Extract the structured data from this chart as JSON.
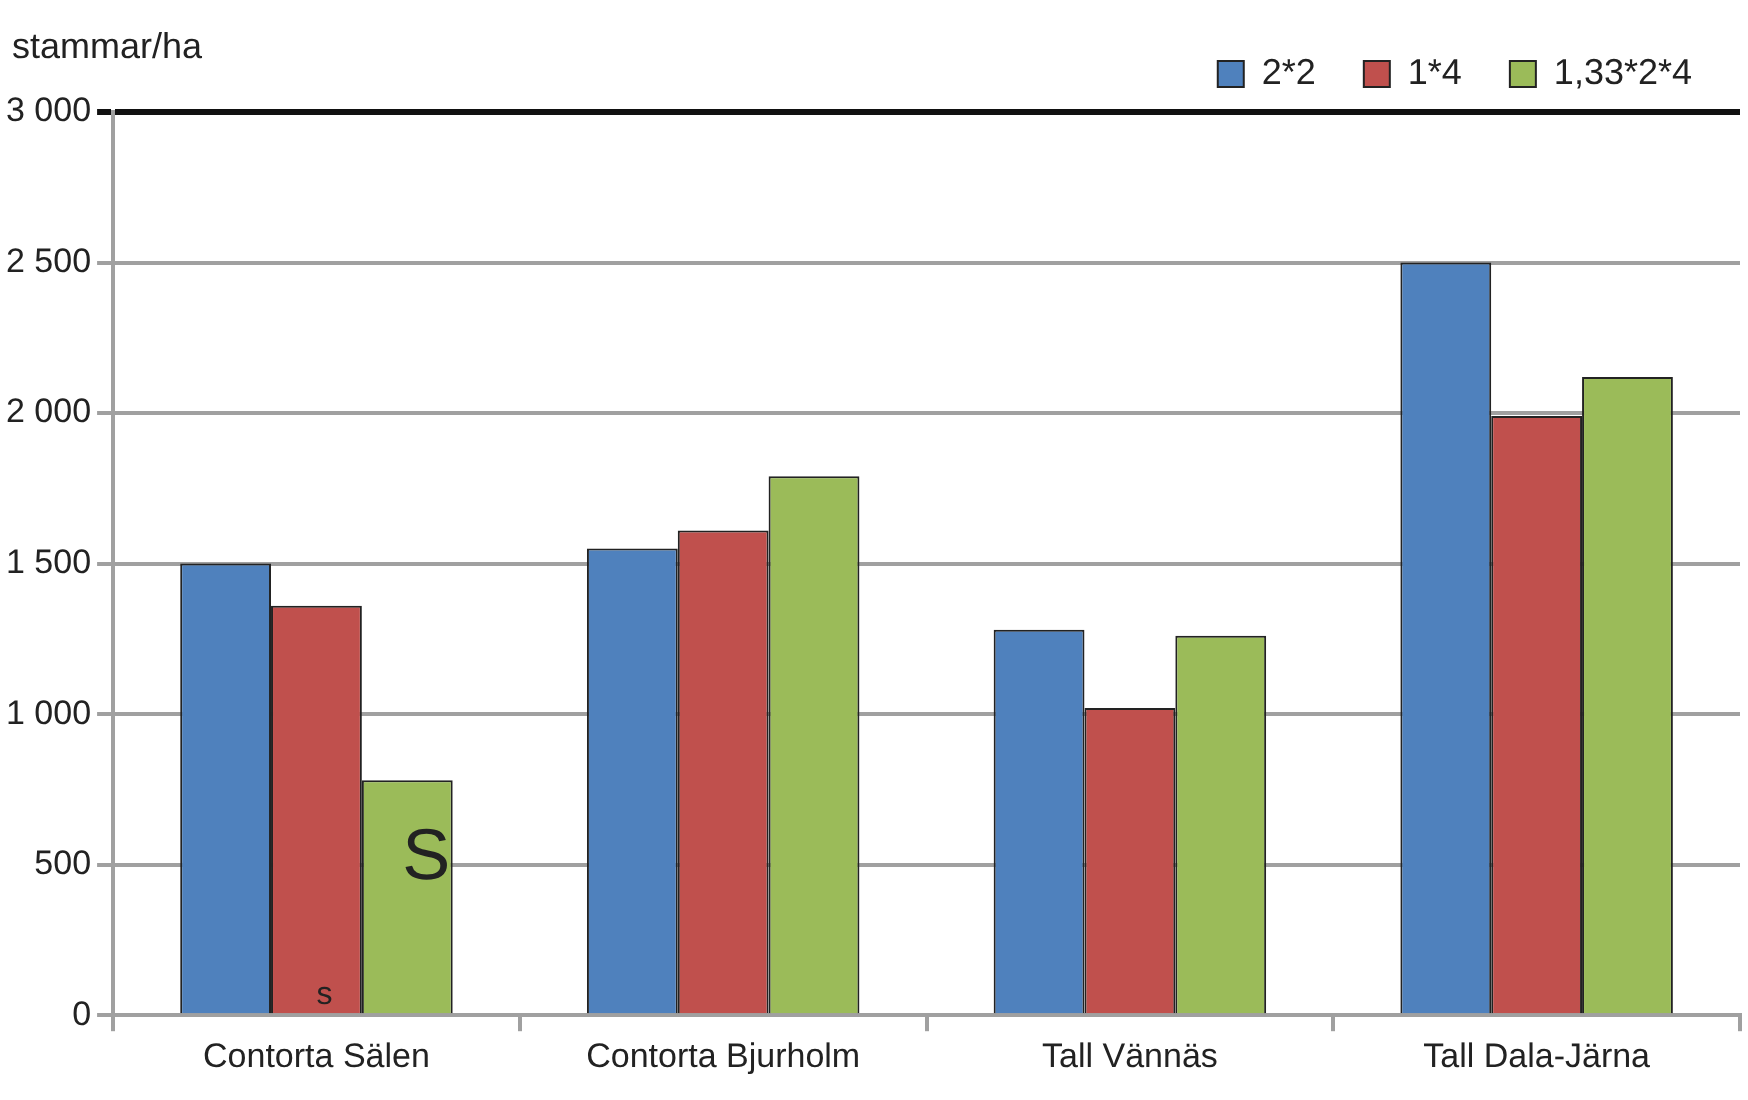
{
  "chart_data": {
    "type": "bar",
    "ylabel": "stammar/ha",
    "categories": [
      "Contorta Sälen",
      "Contorta Bjurholm",
      "Tall Vännäs",
      "Tall Dala-Järna"
    ],
    "series": [
      {
        "name": "2*2",
        "color": "#4f81bd",
        "values": [
          1500,
          1550,
          1280,
          2500
        ]
      },
      {
        "name": "1*4",
        "color": "#c0504d",
        "values": [
          1360,
          1610,
          1020,
          1990
        ]
      },
      {
        "name": "1,33*2*4",
        "color": "#9bbb59",
        "values": [
          780,
          1790,
          1260,
          2120
        ]
      }
    ],
    "ylim": [
      0,
      3000
    ],
    "yticks": [
      0,
      500,
      {
        "value": 1000,
        "label": "1 000"
      },
      {
        "value": 1500,
        "label": "1 500"
      },
      {
        "value": 2000,
        "label": "2 000"
      },
      {
        "value": 2500,
        "label": "2 500"
      },
      {
        "value": 3000,
        "label": "3 000"
      }
    ],
    "grid": "y",
    "legend": "top right",
    "annotations": [
      "s",
      "S"
    ]
  }
}
